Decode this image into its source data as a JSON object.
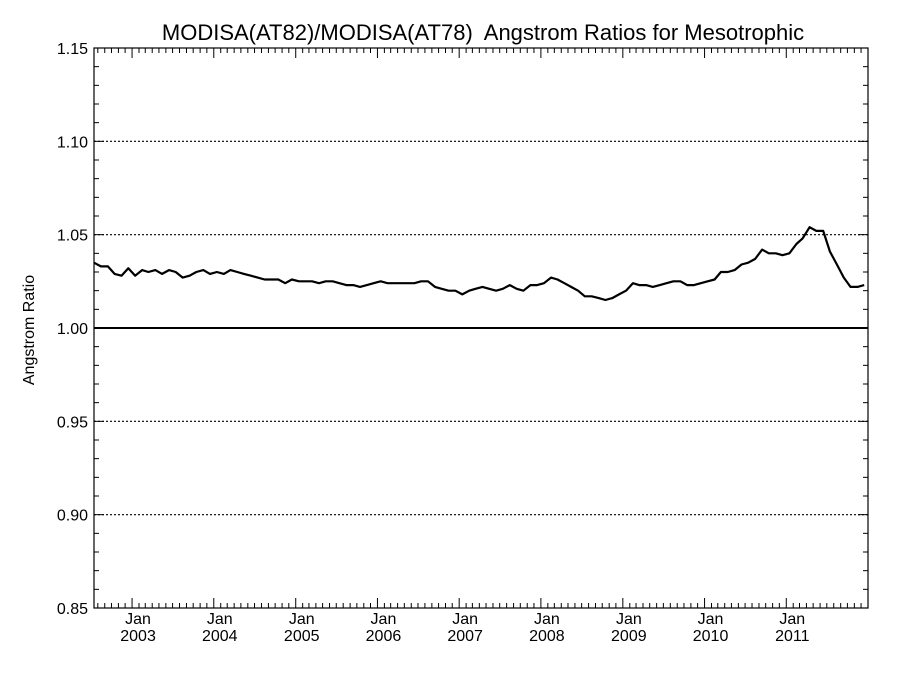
{
  "chart_data": {
    "type": "line",
    "title": "MODISA(AT82)/MODISA(AT78)  Angstrom Ratios for Mesotrophic",
    "xlabel": "",
    "ylabel": "Angstrom Ratio",
    "xlim": [
      "2002-07-15",
      "2012-01-01"
    ],
    "ylim": [
      0.85,
      1.15
    ],
    "grid": "horizontal dotted at major y ticks",
    "reference_line": 1.0,
    "y_ticks": [
      "0.85",
      "0.90",
      "0.95",
      "1.00",
      "1.05",
      "1.10",
      "1.15"
    ],
    "y_tick_values": [
      0.85,
      0.9,
      0.95,
      1.0,
      1.05,
      1.1,
      1.15
    ],
    "x_ticks": [
      {
        "month": "Jan",
        "year": "2003",
        "date": "2003-01-01"
      },
      {
        "month": "Jan",
        "year": "2004",
        "date": "2004-01-01"
      },
      {
        "month": "Jan",
        "year": "2005",
        "date": "2005-01-01"
      },
      {
        "month": "Jan",
        "year": "2006",
        "date": "2006-01-01"
      },
      {
        "month": "Jan",
        "year": "2007",
        "date": "2007-01-01"
      },
      {
        "month": "Jan",
        "year": "2008",
        "date": "2008-01-01"
      },
      {
        "month": "Jan",
        "year": "2009",
        "date": "2009-01-01"
      },
      {
        "month": "Jan",
        "year": "2010",
        "date": "2010-01-01"
      },
      {
        "month": "Jan",
        "year": "2011",
        "date": "2011-01-01"
      }
    ],
    "series": [
      {
        "x": [
          "2002-07-15",
          "2002-08-15",
          "2002-09-15",
          "2002-10-15",
          "2002-11-15",
          "2002-12-15",
          "2003-01-15",
          "2003-02-15",
          "2003-03-15",
          "2003-04-15",
          "2003-05-15",
          "2003-06-15",
          "2003-07-15",
          "2003-08-15",
          "2003-09-15",
          "2003-10-15",
          "2003-11-15",
          "2003-12-15",
          "2004-01-15",
          "2004-02-15",
          "2004-03-15",
          "2004-04-15",
          "2004-05-15",
          "2004-06-15",
          "2004-07-15",
          "2004-08-15",
          "2004-09-15",
          "2004-10-15",
          "2004-11-15",
          "2004-12-15",
          "2005-01-15",
          "2005-02-15",
          "2005-03-15",
          "2005-04-15",
          "2005-05-15",
          "2005-06-15",
          "2005-07-15",
          "2005-08-15",
          "2005-09-15",
          "2005-10-15",
          "2005-11-15",
          "2005-12-15",
          "2006-01-15",
          "2006-02-15",
          "2006-03-15",
          "2006-04-15",
          "2006-05-15",
          "2006-06-15",
          "2006-07-15",
          "2006-08-15",
          "2006-09-15",
          "2006-10-15",
          "2006-11-15",
          "2006-12-15",
          "2007-01-15",
          "2007-02-15",
          "2007-03-15",
          "2007-04-15",
          "2007-05-15",
          "2007-06-15",
          "2007-07-15",
          "2007-08-15",
          "2007-09-15",
          "2007-10-15",
          "2007-11-15",
          "2007-12-15",
          "2008-01-15",
          "2008-02-15",
          "2008-03-15",
          "2008-04-15",
          "2008-05-15",
          "2008-06-15",
          "2008-07-15",
          "2008-08-15",
          "2008-09-15",
          "2008-10-15",
          "2008-11-15",
          "2008-12-15",
          "2009-01-15",
          "2009-02-15",
          "2009-03-15",
          "2009-04-15",
          "2009-05-15",
          "2009-06-15",
          "2009-07-15",
          "2009-08-15",
          "2009-09-15",
          "2009-10-15",
          "2009-11-15",
          "2009-12-15",
          "2010-01-15",
          "2010-02-15",
          "2010-03-15",
          "2010-04-15",
          "2010-05-15",
          "2010-06-15",
          "2010-07-15",
          "2010-08-15",
          "2010-09-15",
          "2010-10-15",
          "2010-11-15",
          "2010-12-15",
          "2011-01-15",
          "2011-02-15",
          "2011-03-15",
          "2011-04-15",
          "2011-05-15",
          "2011-06-15",
          "2011-07-15",
          "2011-08-15",
          "2011-09-15",
          "2011-10-15",
          "2011-11-15",
          "2011-12-15"
        ],
        "y": [
          1.035,
          1.033,
          1.033,
          1.029,
          1.028,
          1.032,
          1.028,
          1.031,
          1.03,
          1.031,
          1.029,
          1.031,
          1.03,
          1.027,
          1.028,
          1.03,
          1.031,
          1.029,
          1.03,
          1.029,
          1.031,
          1.03,
          1.029,
          1.028,
          1.027,
          1.026,
          1.026,
          1.026,
          1.024,
          1.026,
          1.025,
          1.025,
          1.025,
          1.024,
          1.025,
          1.025,
          1.024,
          1.023,
          1.023,
          1.022,
          1.023,
          1.024,
          1.025,
          1.024,
          1.024,
          1.024,
          1.024,
          1.024,
          1.025,
          1.025,
          1.022,
          1.021,
          1.02,
          1.02,
          1.018,
          1.02,
          1.021,
          1.022,
          1.021,
          1.02,
          1.021,
          1.023,
          1.021,
          1.02,
          1.023,
          1.023,
          1.024,
          1.027,
          1.026,
          1.024,
          1.022,
          1.02,
          1.017,
          1.017,
          1.016,
          1.015,
          1.016,
          1.018,
          1.02,
          1.024,
          1.023,
          1.023,
          1.022,
          1.023,
          1.024,
          1.025,
          1.025,
          1.023,
          1.023,
          1.024,
          1.025,
          1.026,
          1.03,
          1.03,
          1.031,
          1.034,
          1.035,
          1.037,
          1.042,
          1.04,
          1.04,
          1.039,
          1.04,
          1.045,
          1.048,
          1.054,
          1.052,
          1.052,
          1.041,
          1.034,
          1.027,
          1.022,
          1.022,
          1.023
        ]
      }
    ]
  }
}
